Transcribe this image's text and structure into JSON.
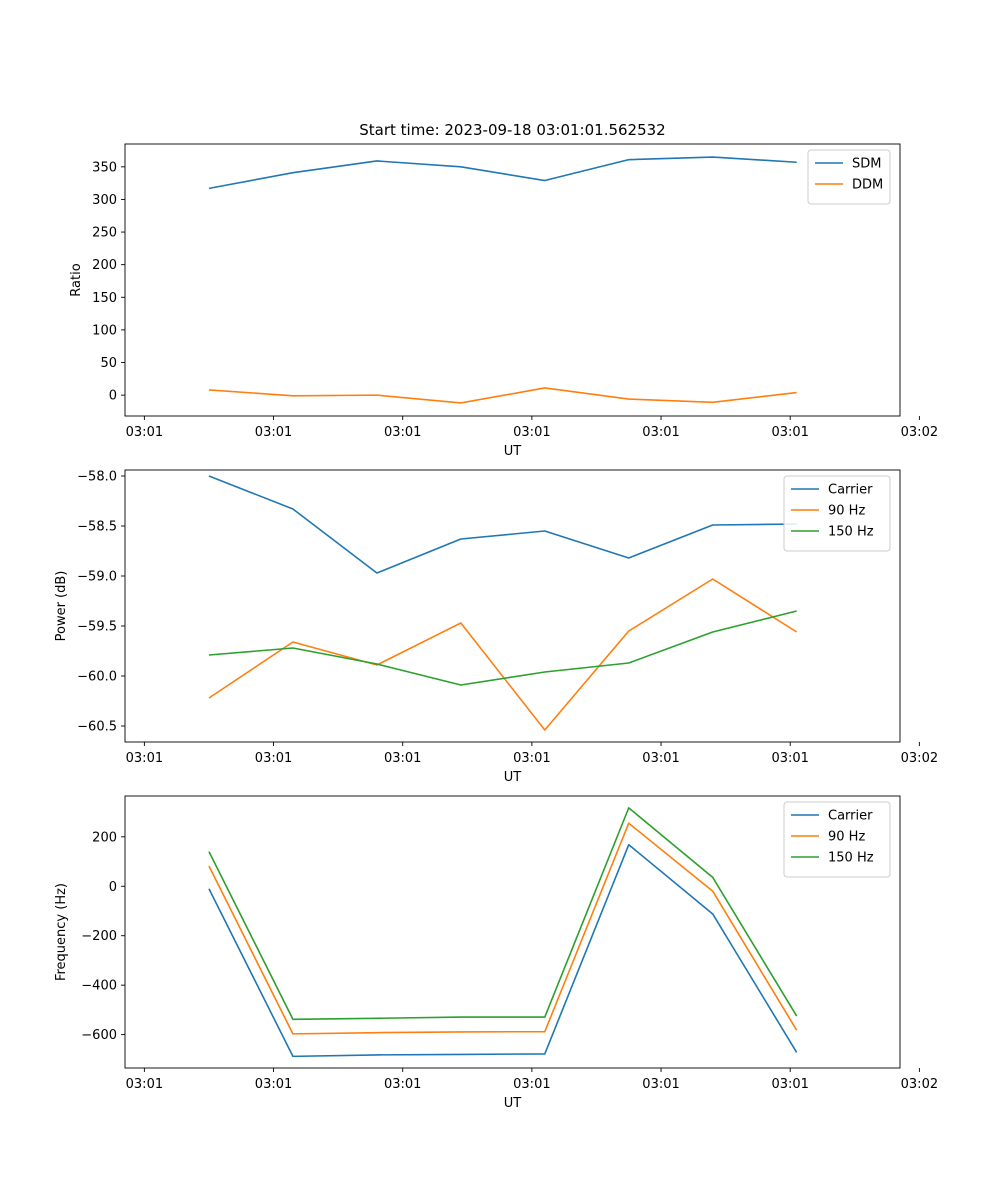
{
  "figure": {
    "title": "Start time: 2023-09-18 03:01:01.562532"
  },
  "chart_data": [
    {
      "type": "line",
      "xlabel": "UT",
      "ylabel": "Ratio",
      "xlim": [
        -0.15,
        5.85
      ],
      "ylim": [
        -32,
        385
      ],
      "x": [
        0.5,
        1.15,
        1.8,
        2.45,
        3.1,
        3.75,
        4.4,
        5.05
      ],
      "x_ticks": [
        0,
        1,
        2,
        3,
        4,
        5,
        6
      ],
      "x_tick_labels": [
        "03:01",
        "03:01",
        "03:01",
        "03:01",
        "03:01",
        "03:01",
        "03:02"
      ],
      "y_ticks": [
        0,
        50,
        100,
        150,
        200,
        250,
        300,
        350
      ],
      "y_tick_labels": [
        "0",
        "50",
        "100",
        "150",
        "200",
        "250",
        "300",
        "350"
      ],
      "legend": "top-right",
      "series": [
        {
          "name": "SDM",
          "color": "#1f77b4",
          "values": [
            317,
            341,
            359,
            350,
            329,
            361,
            365,
            357
          ]
        },
        {
          "name": "DDM",
          "color": "#ff7f0e",
          "values": [
            8,
            -1,
            0,
            -12,
            11,
            -6,
            -11,
            4
          ]
        }
      ]
    },
    {
      "type": "line",
      "xlabel": "UT",
      "ylabel": "Power (dB)",
      "xlim": [
        -0.15,
        5.85
      ],
      "ylim": [
        -60.66,
        -57.94
      ],
      "x": [
        0.5,
        1.15,
        1.8,
        2.45,
        3.1,
        3.75,
        4.4,
        5.05
      ],
      "x_ticks": [
        0,
        1,
        2,
        3,
        4,
        5,
        6
      ],
      "x_tick_labels": [
        "03:01",
        "03:01",
        "03:01",
        "03:01",
        "03:01",
        "03:01",
        "03:02"
      ],
      "y_ticks": [
        -58.0,
        -58.5,
        -59.0,
        -59.5,
        -60.0,
        -60.5
      ],
      "y_tick_labels": [
        "−58.0",
        "−58.5",
        "−59.0",
        "−59.5",
        "−60.0",
        "−60.5"
      ],
      "legend": "top-right",
      "series": [
        {
          "name": "Carrier",
          "color": "#1f77b4",
          "values": [
            -58.0,
            -58.33,
            -58.97,
            -58.63,
            -58.55,
            -58.82,
            -58.49,
            -58.48
          ]
        },
        {
          "name": "90 Hz",
          "color": "#ff7f0e",
          "values": [
            -60.22,
            -59.66,
            -59.89,
            -59.47,
            -60.54,
            -59.55,
            -59.03,
            -59.56
          ]
        },
        {
          "name": "150 Hz",
          "color": "#2ca02c",
          "values": [
            -59.79,
            -59.72,
            -59.88,
            -60.09,
            -59.96,
            -59.87,
            -59.56,
            -59.35
          ]
        }
      ]
    },
    {
      "type": "line",
      "xlabel": "UT",
      "ylabel": "Frequency (Hz)",
      "xlim": [
        -0.15,
        5.85
      ],
      "ylim": [
        -735,
        365
      ],
      "x": [
        0.5,
        1.15,
        1.8,
        2.45,
        3.1,
        3.75,
        4.4,
        5.05
      ],
      "x_ticks": [
        0,
        1,
        2,
        3,
        4,
        5,
        6
      ],
      "x_tick_labels": [
        "03:01",
        "03:01",
        "03:01",
        "03:01",
        "03:01",
        "03:01",
        "03:02"
      ],
      "y_ticks": [
        200,
        0,
        -200,
        -400,
        -600
      ],
      "y_tick_labels": [
        "200",
        "0",
        "−200",
        "−400",
        "−600"
      ],
      "legend": "top-right",
      "series": [
        {
          "name": "Carrier",
          "color": "#1f77b4",
          "values": [
            -10,
            -688,
            -682,
            -680,
            -678,
            168,
            -112,
            -672
          ]
        },
        {
          "name": "90 Hz",
          "color": "#ff7f0e",
          "values": [
            82,
            -597,
            -592,
            -589,
            -588,
            255,
            -20,
            -582
          ]
        },
        {
          "name": "150 Hz",
          "color": "#2ca02c",
          "values": [
            140,
            -538,
            -534,
            -529,
            -529,
            317,
            36,
            -525
          ]
        }
      ]
    }
  ]
}
